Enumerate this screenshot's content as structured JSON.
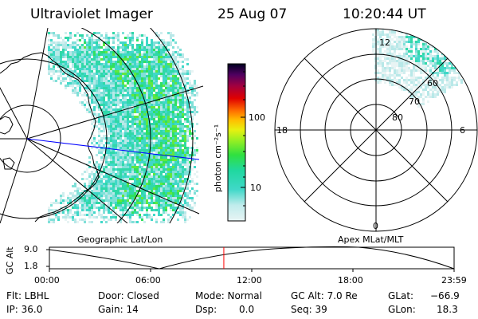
{
  "header": {
    "instrument": "Ultraviolet Imager",
    "date": "25 Aug 07",
    "time": "10:20:44 UT"
  },
  "colorbar": {
    "unit_label": "photon cm⁻²s⁻¹",
    "tick_100": "100",
    "tick_10": "10"
  },
  "left_panel": {
    "caption": "Geographic Lat/Lon"
  },
  "right_panel": {
    "caption": "Apex MLat/MLT",
    "mlt_12": "12",
    "mlt_18": "18",
    "mlt_6": "6",
    "mlt_0": "0",
    "lat_60": "60",
    "lat_70": "70",
    "lat_80": "80"
  },
  "alt_strip": {
    "axis_label": "GC Alt",
    "tick_top": "9.0",
    "tick_bottom": "1.8",
    "time_ticks": [
      "00:00",
      "06:00",
      "12:00",
      "18:00",
      "23:59"
    ],
    "current_time_fraction": 0.431
  },
  "info": {
    "flt": "Flt: LBHL",
    "ip": "IP: 36.0",
    "door": "Door: Closed",
    "gain": "Gain: 14",
    "mode": "Mode: Normal",
    "dsp": "Dsp:",
    "dsp_val": "0.0",
    "gcalt": "GC Alt: 7.0 Re",
    "seq": "Seq: 39",
    "glat": "GLat:",
    "glat_val": "−66.9",
    "glon": "GLon:",
    "glon_val": "18.3"
  },
  "colors": {
    "bar_dark": "#000000",
    "bar_light": "#e8f4f4",
    "marker": "#ff0000",
    "meridian": "#0000ff"
  }
}
